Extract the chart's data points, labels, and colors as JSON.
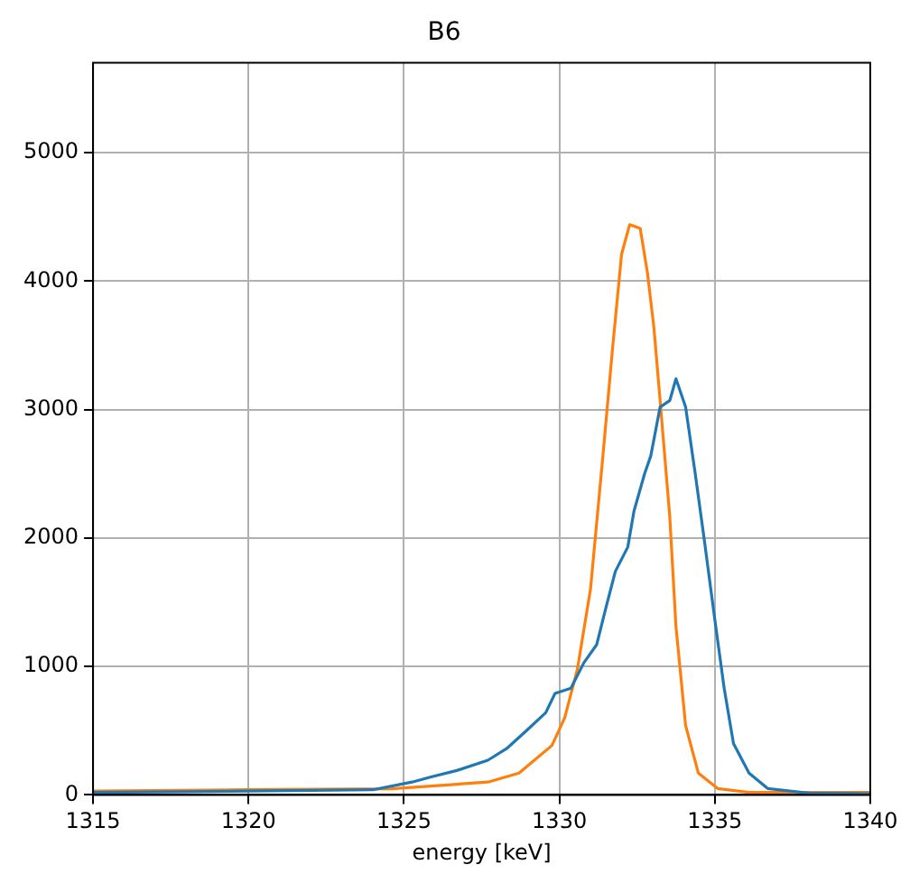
{
  "chart_data": {
    "type": "line",
    "title": "B6",
    "xlabel": "energy [keV]",
    "xlim": [
      1315,
      1340
    ],
    "xticks": [
      1315,
      1320,
      1325,
      1330,
      1335,
      1340
    ],
    "ylim": [
      0,
      5700
    ],
    "yticks": [
      0,
      1000,
      2000,
      3000,
      4000,
      5000
    ],
    "grid": true,
    "marker": "none",
    "line_style": "solid",
    "series": [
      {
        "color": "#1f77b4",
        "x": [
          1315,
          1318,
          1320,
          1322,
          1324,
          1325.26,
          1325.87,
          1326.7,
          1327.7,
          1328.3,
          1328.94,
          1329.56,
          1329.86,
          1330.37,
          1330.79,
          1331.2,
          1331.5,
          1331.8,
          1332.2,
          1332.4,
          1332.74,
          1332.94,
          1333.24,
          1333.55,
          1333.75,
          1334.06,
          1334.37,
          1334.67,
          1334.98,
          1335.3,
          1335.6,
          1336.1,
          1336.7,
          1338,
          1340
        ],
        "values": [
          20,
          25,
          30,
          35,
          40,
          100,
          140,
          190,
          270,
          360,
          500,
          640,
          790,
          830,
          1030,
          1170,
          1460,
          1740,
          1930,
          2210,
          2500,
          2640,
          3020,
          3070,
          3240,
          3020,
          2500,
          1970,
          1400,
          830,
          400,
          170,
          50,
          15,
          10
        ]
      },
      {
        "color": "#ff7f0e",
        "x": [
          1315,
          1320,
          1324.6,
          1327.7,
          1328.7,
          1329.76,
          1330.17,
          1330.58,
          1331.0,
          1331.4,
          1331.7,
          1332.0,
          1332.26,
          1332.6,
          1332.83,
          1333.04,
          1333.24,
          1333.55,
          1333.75,
          1334.06,
          1334.47,
          1335.09,
          1336.1,
          1340
        ],
        "values": [
          30,
          40,
          47,
          100,
          170,
          385,
          600,
          980,
          1600,
          2640,
          3450,
          4210,
          4440,
          4410,
          4070,
          3640,
          3070,
          2170,
          1310,
          540,
          170,
          50,
          20,
          20
        ]
      }
    ]
  }
}
